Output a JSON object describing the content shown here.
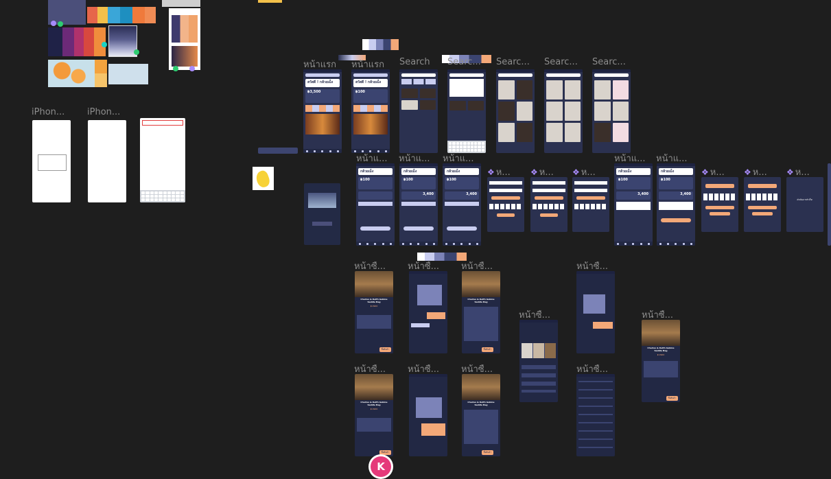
{
  "canvas": {
    "background": "#1e1e1e",
    "accent": "#f3a878",
    "frame_color": "#2b3150"
  },
  "labels": {
    "iphone_1": "iPhon...",
    "iphone_2": "iPhon...",
    "home_1": "หน้าแรก",
    "home_2": "หน้าแรก",
    "search_1": "Search",
    "search_2": "Searc...",
    "search_3": "Searc...",
    "search_4": "Searc...",
    "search_5": "Searc...",
    "wallet_1": "หน้าแ...",
    "wallet_2": "หน้าแ...",
    "wallet_3": "หน้าแ...",
    "comp_1": "ห...",
    "comp_2": "ห...",
    "comp_3": "ห...",
    "wallet_4": "หน้าแ...",
    "wallet_5": "หน้าแ...",
    "comp_4": "ห...",
    "comp_5": "ห...",
    "comp_6": "ห...",
    "buy_1": "หน้าซื...",
    "buy_2": "หน้าซื...",
    "buy_3": "หน้าซื...",
    "buy_4": "หน้าซื...",
    "buy_5": "หน้าซื...",
    "buy_6": "หน้าซื...",
    "buy_7": "หน้าซื...",
    "buy_8": "หน้าซื...",
    "buy_9": "หน้าซื...",
    "buy_10": "หน้าซื...",
    "buy_11": "หน้าซื..."
  },
  "home": {
    "greeting_1": "สวัสดี ! กล้วยเม็ง",
    "greeting_2": "สวัสดี ! กล้วยเม็ง",
    "balance_1": "฿3,500",
    "balance_2": "฿100"
  },
  "wallet": {
    "greeting": "กล้วยเม็ง",
    "balance": "฿100",
    "amount": "3,400"
  },
  "product": {
    "name": "Charles & Keith Gabine Saddle Bag",
    "price": "฿ 2900",
    "buy_button": "ซื้อสินค้า"
  },
  "otp": {
    "digits": [
      "1",
      "1",
      "1",
      "1",
      "1",
      "1"
    ],
    "done_text": "ดำเนินการสำเร็จ!"
  },
  "keyboard": {
    "row1": "QWERTYUIOP",
    "row2": "ASDFGHJKL"
  },
  "user": {
    "avatar_initial": "K"
  }
}
